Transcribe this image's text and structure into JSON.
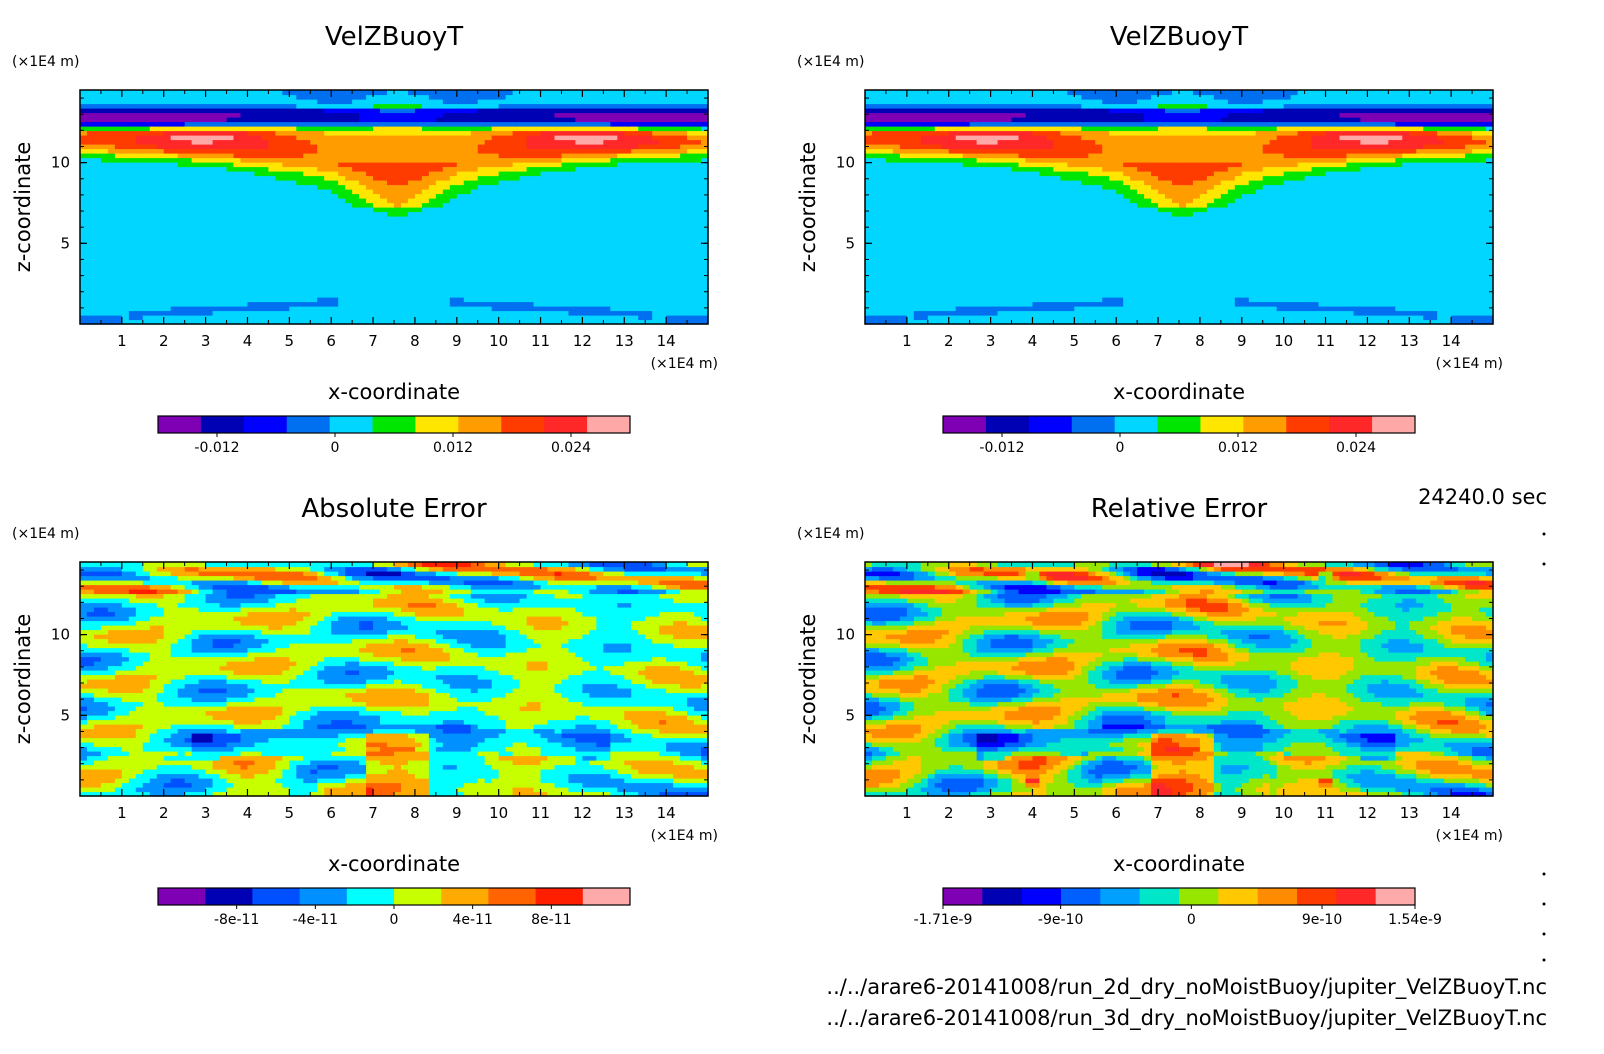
{
  "figure": {
    "time_text": "24240.0 sec",
    "file_lines": [
      "../../arare6-20141008/run_2d_dry_noMoistBuoy/jupiter_VelZBuoyT.nc",
      "../../arare6-20141008/run_3d_dry_noMoistBuoy/jupiter_VelZBuoyT.nc"
    ]
  },
  "chart_data": [
    {
      "id": "p1",
      "type": "heatmap",
      "title": "VelZBuoyT",
      "xlabel": "x-coordinate",
      "ylabel": "z-coordinate",
      "x_unit": "(×1E4 m)",
      "y_unit": "(×1E4 m)",
      "xlim": [
        0,
        15
      ],
      "ylim": [
        0,
        14.5
      ],
      "x_ticks": [
        "1",
        "2",
        "3",
        "4",
        "5",
        "6",
        "7",
        "8",
        "9",
        "10",
        "11",
        "12",
        "13",
        "14"
      ],
      "y_ticks": [
        "5",
        "10"
      ],
      "field": "velz",
      "colorbar": {
        "colors": [
          "#7f00b4",
          "#0000b4",
          "#0000ff",
          "#0070f0",
          "#00d6ff",
          "#00e600",
          "#ffe600",
          "#ff9c00",
          "#ff3c00",
          "#ff2828",
          "#ffa8a8"
        ],
        "range": [
          -0.018,
          0.03
        ],
        "tick_labels": [
          "-0.012",
          "0",
          "0.012",
          "0.024"
        ],
        "tick_values": [
          -0.012,
          0,
          0.012,
          0.024
        ]
      }
    },
    {
      "id": "p2",
      "type": "heatmap",
      "title": "VelZBuoyT",
      "xlabel": "x-coordinate",
      "ylabel": "z-coordinate",
      "x_unit": "(×1E4 m)",
      "y_unit": "(×1E4 m)",
      "xlim": [
        0,
        15
      ],
      "ylim": [
        0,
        14.5
      ],
      "x_ticks": [
        "1",
        "2",
        "3",
        "4",
        "5",
        "6",
        "7",
        "8",
        "9",
        "10",
        "11",
        "12",
        "13",
        "14"
      ],
      "y_ticks": [
        "5",
        "10"
      ],
      "field": "velz",
      "colorbar": {
        "colors": [
          "#7f00b4",
          "#0000b4",
          "#0000ff",
          "#0070f0",
          "#00d6ff",
          "#00e600",
          "#ffe600",
          "#ff9c00",
          "#ff3c00",
          "#ff2828",
          "#ffa8a8"
        ],
        "range": [
          -0.018,
          0.03
        ],
        "tick_labels": [
          "-0.012",
          "0",
          "0.012",
          "0.024"
        ],
        "tick_values": [
          -0.012,
          0,
          0.012,
          0.024
        ]
      }
    },
    {
      "id": "p3",
      "type": "heatmap",
      "title": "Absolute Error",
      "xlabel": "x-coordinate",
      "ylabel": "z-coordinate",
      "x_unit": "(×1E4 m)",
      "y_unit": "(×1E4 m)",
      "xlim": [
        0,
        15
      ],
      "ylim": [
        0,
        14.5
      ],
      "x_ticks": [
        "1",
        "2",
        "3",
        "4",
        "5",
        "6",
        "7",
        "8",
        "9",
        "10",
        "11",
        "12",
        "13",
        "14"
      ],
      "y_ticks": [
        "5",
        "10"
      ],
      "field": "abserr",
      "colorbar": {
        "colors": [
          "#7f00b4",
          "#0000b4",
          "#0050ff",
          "#0090ff",
          "#00ffff",
          "#c8ff00",
          "#ffaa00",
          "#ff6400",
          "#ff1e00",
          "#ffaaaa"
        ],
        "range": [
          -1.2e-10,
          1.2e-10
        ],
        "tick_labels": [
          "-8e-11",
          "-4e-11",
          "0",
          "4e-11",
          "8e-11"
        ],
        "tick_values": [
          -8e-11,
          -4e-11,
          0,
          4e-11,
          8e-11
        ]
      }
    },
    {
      "id": "p4",
      "type": "heatmap",
      "title": "Relative Error",
      "xlabel": "x-coordinate",
      "ylabel": "z-coordinate",
      "x_unit": "(×1E4 m)",
      "y_unit": "(×1E4 m)",
      "xlim": [
        0,
        15
      ],
      "ylim": [
        0,
        14.5
      ],
      "x_ticks": [
        "1",
        "2",
        "3",
        "4",
        "5",
        "6",
        "7",
        "8",
        "9",
        "10",
        "11",
        "12",
        "13",
        "14"
      ],
      "y_ticks": [
        "5",
        "10"
      ],
      "field": "relerr",
      "colorbar": {
        "colors": [
          "#7f00b4",
          "#0000b4",
          "#0000ff",
          "#0060ff",
          "#00a0ff",
          "#00e6c8",
          "#96e600",
          "#ffc800",
          "#ff8c00",
          "#ff3c00",
          "#ff2828",
          "#ffaaaa"
        ],
        "range": [
          -1.71e-09,
          1.54e-09
        ],
        "tick_labels": [
          "-1.71e-9",
          "-9e-10",
          "0",
          "9e-10",
          "1.54e-9"
        ],
        "tick_values": [
          -1.71e-09,
          -9e-10,
          0,
          9e-10,
          1.54e-09
        ]
      }
    }
  ]
}
